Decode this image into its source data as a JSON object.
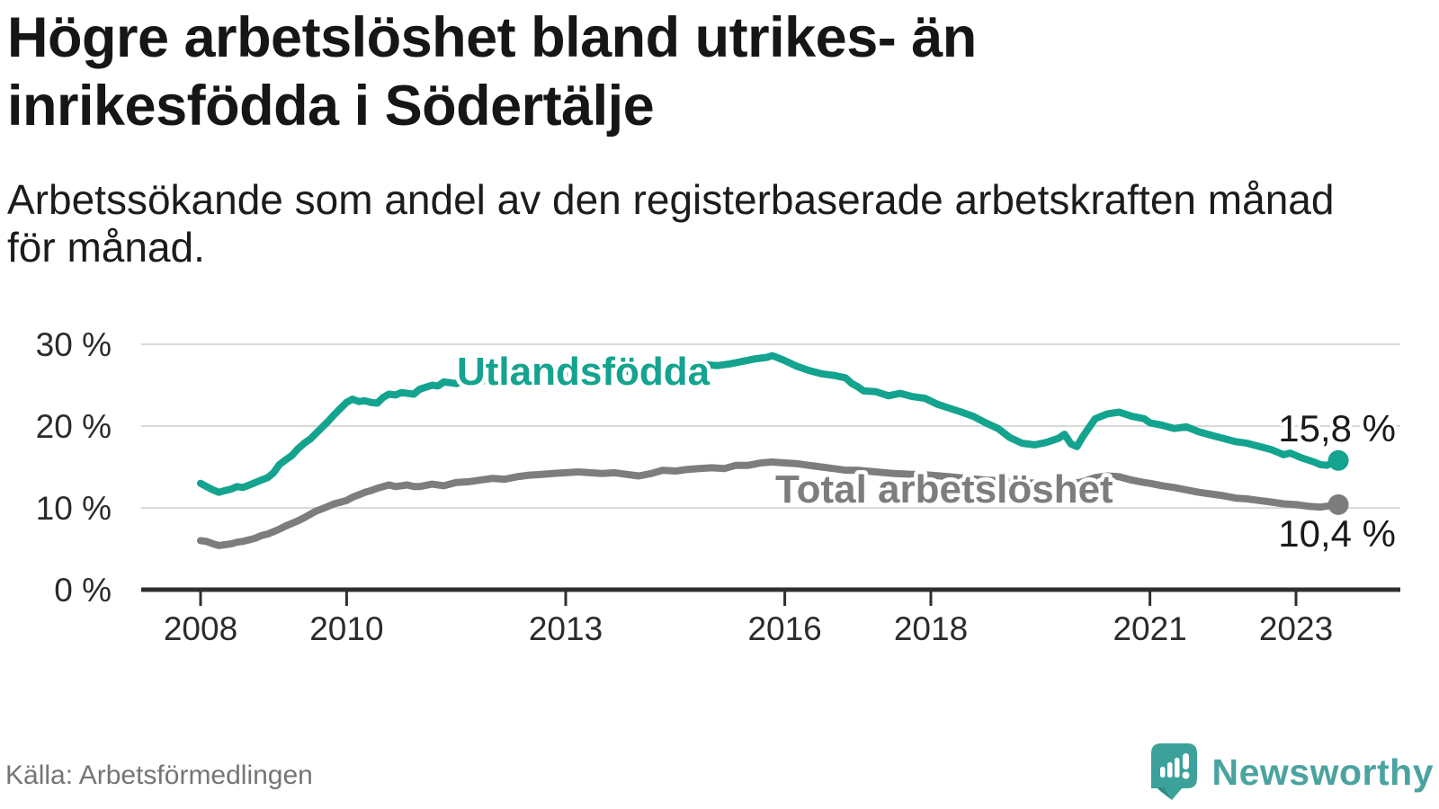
{
  "header": {
    "title_lines": [
      "Högre arbetslöshet bland utrikes- än",
      "inrikesfödda i Södertälje"
    ],
    "subtitle_lines": [
      "Arbetssökande som andel av den registerbaserade arbetskraften månad",
      "för månad."
    ]
  },
  "chart_data": {
    "type": "line",
    "x_unit": "decimal_year",
    "xlim": [
      2007.9,
      2023.8
    ],
    "ylim": [
      0,
      32
    ],
    "grid": "horizontal",
    "legend_position": "inline-labels",
    "xticks": {
      "values": [
        2008,
        2010,
        2013,
        2016,
        2018,
        2021,
        2023
      ],
      "labels": [
        "2008",
        "2010",
        "2013",
        "2016",
        "2018",
        "2021",
        "2023"
      ]
    },
    "yticks": {
      "values": [
        0,
        10,
        20,
        30
      ],
      "labels": [
        "0 %",
        "10 %",
        "20 %",
        "30 %"
      ]
    },
    "series": [
      {
        "id": "utlandsfodda",
        "label": "Utlandsfödda",
        "color": "#14a38e",
        "end_label": "15,8 %",
        "end_value": 15.8,
        "points": [
          [
            2008.0,
            13.0
          ],
          [
            2008.08,
            12.6
          ],
          [
            2008.17,
            12.2
          ],
          [
            2008.25,
            11.9
          ],
          [
            2008.33,
            12.1
          ],
          [
            2008.42,
            12.3
          ],
          [
            2008.5,
            12.6
          ],
          [
            2008.58,
            12.5
          ],
          [
            2008.67,
            12.8
          ],
          [
            2008.75,
            13.1
          ],
          [
            2008.83,
            13.4
          ],
          [
            2008.92,
            13.7
          ],
          [
            2009.0,
            14.3
          ],
          [
            2009.08,
            15.3
          ],
          [
            2009.17,
            15.9
          ],
          [
            2009.25,
            16.4
          ],
          [
            2009.33,
            17.2
          ],
          [
            2009.42,
            17.9
          ],
          [
            2009.5,
            18.4
          ],
          [
            2009.58,
            19.1
          ],
          [
            2009.67,
            19.9
          ],
          [
            2009.75,
            20.6
          ],
          [
            2009.83,
            21.4
          ],
          [
            2009.92,
            22.2
          ],
          [
            2010.0,
            22.9
          ],
          [
            2010.08,
            23.3
          ],
          [
            2010.17,
            23.0
          ],
          [
            2010.25,
            23.1
          ],
          [
            2010.33,
            22.9
          ],
          [
            2010.42,
            22.8
          ],
          [
            2010.5,
            23.5
          ],
          [
            2010.58,
            23.9
          ],
          [
            2010.67,
            23.8
          ],
          [
            2010.75,
            24.1
          ],
          [
            2010.83,
            24.0
          ],
          [
            2010.92,
            23.9
          ],
          [
            2011.0,
            24.5
          ],
          [
            2011.17,
            25.0
          ],
          [
            2011.25,
            24.9
          ],
          [
            2011.33,
            25.4
          ],
          [
            2011.5,
            25.2
          ],
          [
            2011.67,
            25.6
          ],
          [
            2011.83,
            25.5
          ],
          [
            2012.0,
            25.7
          ],
          [
            2012.25,
            25.9
          ],
          [
            2012.5,
            26.1
          ],
          [
            2012.75,
            26.2
          ],
          [
            2013.0,
            26.3
          ],
          [
            2013.25,
            26.5
          ],
          [
            2013.5,
            26.6
          ],
          [
            2013.75,
            26.6
          ],
          [
            2014.0,
            26.8
          ],
          [
            2014.25,
            27.0
          ],
          [
            2014.42,
            26.7
          ],
          [
            2014.58,
            27.2
          ],
          [
            2014.75,
            27.3
          ],
          [
            2014.92,
            27.5
          ],
          [
            2015.08,
            27.4
          ],
          [
            2015.25,
            27.6
          ],
          [
            2015.42,
            27.9
          ],
          [
            2015.58,
            28.2
          ],
          [
            2015.75,
            28.4
          ],
          [
            2015.83,
            28.6
          ],
          [
            2015.92,
            28.3
          ],
          [
            2016.0,
            28.0
          ],
          [
            2016.17,
            27.3
          ],
          [
            2016.33,
            26.8
          ],
          [
            2016.5,
            26.4
          ],
          [
            2016.67,
            26.2
          ],
          [
            2016.83,
            25.9
          ],
          [
            2016.92,
            25.2
          ],
          [
            2017.0,
            24.8
          ],
          [
            2017.08,
            24.3
          ],
          [
            2017.25,
            24.2
          ],
          [
            2017.42,
            23.7
          ],
          [
            2017.58,
            24.0
          ],
          [
            2017.75,
            23.6
          ],
          [
            2017.92,
            23.4
          ],
          [
            2018.08,
            22.7
          ],
          [
            2018.25,
            22.2
          ],
          [
            2018.42,
            21.7
          ],
          [
            2018.58,
            21.2
          ],
          [
            2018.75,
            20.4
          ],
          [
            2018.92,
            19.7
          ],
          [
            2019.08,
            18.6
          ],
          [
            2019.25,
            17.9
          ],
          [
            2019.42,
            17.7
          ],
          [
            2019.58,
            18.0
          ],
          [
            2019.75,
            18.5
          ],
          [
            2019.83,
            19.0
          ],
          [
            2019.92,
            17.8
          ],
          [
            2020.0,
            17.5
          ],
          [
            2020.08,
            18.7
          ],
          [
            2020.25,
            20.9
          ],
          [
            2020.42,
            21.5
          ],
          [
            2020.58,
            21.7
          ],
          [
            2020.75,
            21.2
          ],
          [
            2020.92,
            20.9
          ],
          [
            2021.0,
            20.4
          ],
          [
            2021.17,
            20.1
          ],
          [
            2021.33,
            19.7
          ],
          [
            2021.5,
            19.9
          ],
          [
            2021.67,
            19.3
          ],
          [
            2021.83,
            18.9
          ],
          [
            2022.0,
            18.5
          ],
          [
            2022.17,
            18.1
          ],
          [
            2022.33,
            17.9
          ],
          [
            2022.5,
            17.5
          ],
          [
            2022.67,
            17.1
          ],
          [
            2022.83,
            16.5
          ],
          [
            2022.92,
            16.7
          ],
          [
            2023.08,
            16.1
          ],
          [
            2023.25,
            15.6
          ],
          [
            2023.33,
            15.3
          ],
          [
            2023.42,
            15.2
          ],
          [
            2023.5,
            15.5
          ],
          [
            2023.58,
            15.8
          ]
        ]
      },
      {
        "id": "total",
        "label": "Total arbetslöshet",
        "color": "#7d7d7d",
        "end_label": "10,4 %",
        "end_value": 10.4,
        "points": [
          [
            2008.0,
            6.0
          ],
          [
            2008.08,
            5.9
          ],
          [
            2008.17,
            5.6
          ],
          [
            2008.25,
            5.4
          ],
          [
            2008.33,
            5.5
          ],
          [
            2008.42,
            5.6
          ],
          [
            2008.5,
            5.8
          ],
          [
            2008.58,
            5.9
          ],
          [
            2008.67,
            6.1
          ],
          [
            2008.75,
            6.3
          ],
          [
            2008.83,
            6.6
          ],
          [
            2008.92,
            6.8
          ],
          [
            2009.0,
            7.1
          ],
          [
            2009.08,
            7.4
          ],
          [
            2009.17,
            7.8
          ],
          [
            2009.25,
            8.1
          ],
          [
            2009.33,
            8.4
          ],
          [
            2009.42,
            8.8
          ],
          [
            2009.5,
            9.2
          ],
          [
            2009.58,
            9.6
          ],
          [
            2009.67,
            9.9
          ],
          [
            2009.75,
            10.2
          ],
          [
            2009.83,
            10.5
          ],
          [
            2009.92,
            10.7
          ],
          [
            2010.0,
            10.9
          ],
          [
            2010.08,
            11.3
          ],
          [
            2010.17,
            11.6
          ],
          [
            2010.25,
            11.9
          ],
          [
            2010.33,
            12.1
          ],
          [
            2010.42,
            12.4
          ],
          [
            2010.5,
            12.6
          ],
          [
            2010.58,
            12.8
          ],
          [
            2010.67,
            12.6
          ],
          [
            2010.75,
            12.7
          ],
          [
            2010.83,
            12.8
          ],
          [
            2010.92,
            12.6
          ],
          [
            2011.0,
            12.6
          ],
          [
            2011.17,
            12.9
          ],
          [
            2011.33,
            12.7
          ],
          [
            2011.5,
            13.1
          ],
          [
            2011.67,
            13.2
          ],
          [
            2011.83,
            13.4
          ],
          [
            2012.0,
            13.6
          ],
          [
            2012.17,
            13.5
          ],
          [
            2012.33,
            13.8
          ],
          [
            2012.5,
            14.0
          ],
          [
            2012.67,
            14.1
          ],
          [
            2012.83,
            14.2
          ],
          [
            2013.0,
            14.3
          ],
          [
            2013.17,
            14.4
          ],
          [
            2013.33,
            14.3
          ],
          [
            2013.5,
            14.2
          ],
          [
            2013.67,
            14.3
          ],
          [
            2013.83,
            14.1
          ],
          [
            2014.0,
            13.9
          ],
          [
            2014.17,
            14.2
          ],
          [
            2014.33,
            14.6
          ],
          [
            2014.5,
            14.5
          ],
          [
            2014.67,
            14.7
          ],
          [
            2014.83,
            14.8
          ],
          [
            2015.0,
            14.9
          ],
          [
            2015.17,
            14.8
          ],
          [
            2015.33,
            15.2
          ],
          [
            2015.5,
            15.2
          ],
          [
            2015.67,
            15.5
          ],
          [
            2015.83,
            15.6
          ],
          [
            2016.0,
            15.5
          ],
          [
            2016.17,
            15.4
          ],
          [
            2016.33,
            15.2
          ],
          [
            2016.5,
            15.0
          ],
          [
            2016.67,
            14.8
          ],
          [
            2016.83,
            14.6
          ],
          [
            2017.0,
            14.6
          ],
          [
            2017.25,
            14.4
          ],
          [
            2017.5,
            14.2
          ],
          [
            2017.75,
            14.1
          ],
          [
            2018.0,
            14.0
          ],
          [
            2018.25,
            13.8
          ],
          [
            2018.5,
            13.6
          ],
          [
            2018.75,
            13.4
          ],
          [
            2019.0,
            13.3
          ],
          [
            2019.25,
            13.1
          ],
          [
            2019.5,
            13.0
          ],
          [
            2019.75,
            12.9
          ],
          [
            2019.92,
            12.9
          ],
          [
            2020.08,
            13.2
          ],
          [
            2020.25,
            13.7
          ],
          [
            2020.42,
            13.9
          ],
          [
            2020.58,
            13.8
          ],
          [
            2020.75,
            13.4
          ],
          [
            2020.92,
            13.1
          ],
          [
            2021.0,
            13.0
          ],
          [
            2021.17,
            12.7
          ],
          [
            2021.33,
            12.5
          ],
          [
            2021.5,
            12.2
          ],
          [
            2021.67,
            11.9
          ],
          [
            2021.83,
            11.7
          ],
          [
            2022.0,
            11.5
          ],
          [
            2022.17,
            11.2
          ],
          [
            2022.33,
            11.1
          ],
          [
            2022.5,
            10.9
          ],
          [
            2022.67,
            10.7
          ],
          [
            2022.83,
            10.5
          ],
          [
            2023.0,
            10.4
          ],
          [
            2023.17,
            10.2
          ],
          [
            2023.33,
            10.1
          ],
          [
            2023.42,
            10.2
          ],
          [
            2023.5,
            10.3
          ],
          [
            2023.58,
            10.4
          ]
        ]
      }
    ]
  },
  "colors": {
    "utlandsfodda_line": "#14a38e",
    "total_line": "#7d7d7d",
    "axis": "#2f2f2f",
    "gridline": "#d9d9d9",
    "tick_label": "#2b2b2b",
    "value_label": "#1a1a1a",
    "brand_teal": "#4ba3a0",
    "logo_fill": "#3da19b",
    "logo_shadow": "#2e8b86"
  },
  "footer": {
    "source": "Källa: Arbetsförmedlingen",
    "brand": "Newsworthy"
  }
}
